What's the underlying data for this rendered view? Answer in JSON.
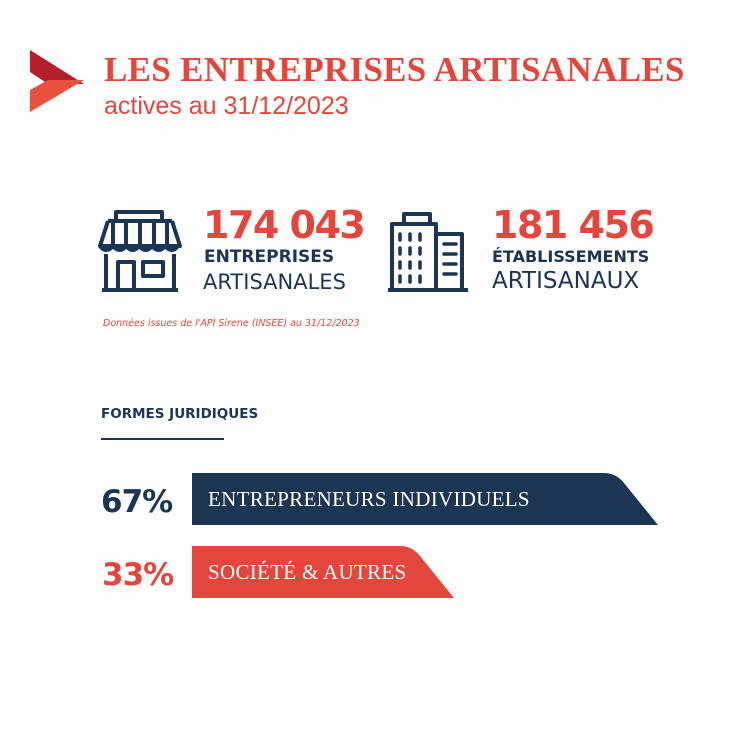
{
  "header": {
    "title": "LES ENTREPRISES ARTISANALES",
    "subtitle": "actives au 31/12/2023"
  },
  "stats": [
    {
      "value": "174 043",
      "label_bold": "ENTREPRISES",
      "label_light": "ARTISANALES",
      "icon": "shop-icon"
    },
    {
      "value": "181 456",
      "label_bold": "ÉTABLISSEMENTS",
      "label_light": "ARTISANAUX",
      "icon": "building-icon"
    }
  ],
  "source": "Données issues de l'API Sirene (INSEE) au 31/12/2023",
  "legal_forms": {
    "title": "FORMES JURIDIQUES",
    "items": [
      {
        "percent": "67%",
        "value": 67,
        "label": "ENTREPRENEURS INDIVIDUELS",
        "color": "#1c3553"
      },
      {
        "percent": "33%",
        "value": 33,
        "label": "SOCIÉTÉ & AUTRES",
        "color": "#e3463c"
      }
    ]
  },
  "colors": {
    "accent": "#e3463c",
    "navy": "#1c3553",
    "background": "#fdfdfd"
  }
}
